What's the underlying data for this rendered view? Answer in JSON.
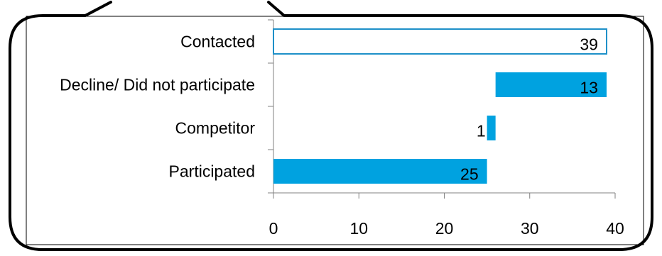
{
  "chart_data": {
    "type": "bar",
    "orientation": "horizontal",
    "stacked": "waterfall",
    "categories": [
      "Contacted",
      "Decline/ Did not participate",
      "Competitor",
      "Participated"
    ],
    "series": [
      {
        "values": [
          39,
          13,
          1,
          25
        ],
        "offsets": [
          0,
          26,
          25,
          0
        ],
        "styles": [
          "outline",
          "filled",
          "filled",
          "filled"
        ]
      }
    ],
    "data_labels": [
      "39",
      "13",
      "1",
      "25"
    ],
    "xlim": [
      0,
      40
    ],
    "x_ticks": [
      "0",
      "10",
      "20",
      "30",
      "40"
    ],
    "title": "",
    "xlabel": "",
    "ylabel": "",
    "grid": false,
    "legend": "none",
    "colors": {
      "bar": "#00A2E0",
      "bar_outline": "#1E90C8",
      "axis": "#808080",
      "frame": "#000000"
    }
  }
}
